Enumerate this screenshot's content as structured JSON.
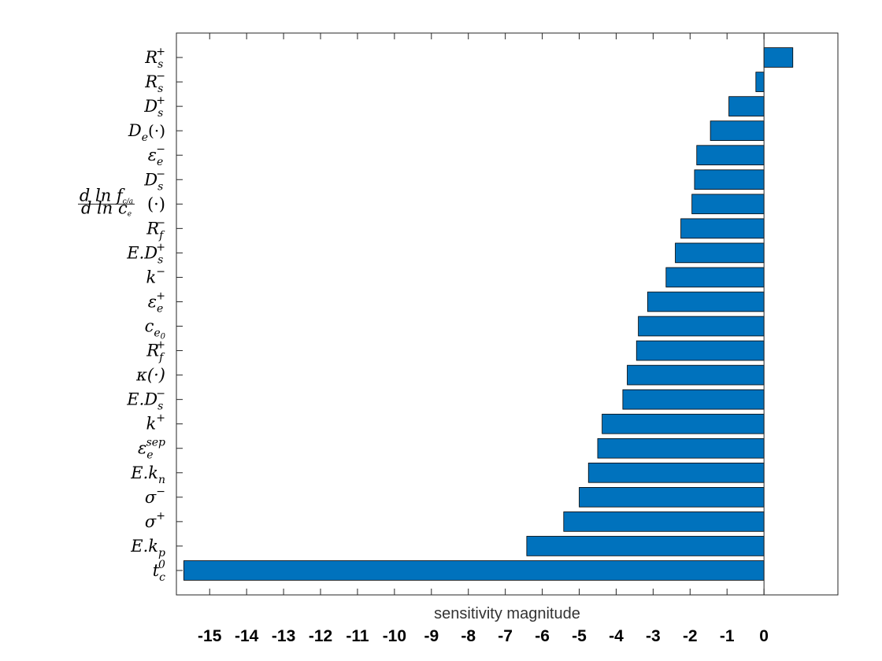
{
  "chart_data": {
    "type": "bar",
    "orientation": "horizontal",
    "title": "",
    "xlabel": "sensitivity magnitude",
    "ylabel": "",
    "xlim": [
      -15.9,
      2.0
    ],
    "x_ticks": [
      -15,
      -14,
      -13,
      -12,
      -11,
      -10,
      -9,
      -8,
      -7,
      -6,
      -5,
      -4,
      -3,
      -2,
      -1,
      0
    ],
    "grid": false,
    "bar_color": "#0072BD",
    "bar_edge_color": "#000000",
    "categories": [
      {
        "id": "Rs+",
        "parts": [
          [
            "R",
            ""
          ],
          [
            "s",
            "sub"
          ],
          [
            "+",
            "sup"
          ]
        ]
      },
      {
        "id": "Rs-",
        "parts": [
          [
            "R",
            ""
          ],
          [
            "s",
            "sub"
          ],
          [
            "−",
            "sup"
          ]
        ]
      },
      {
        "id": "Ds+",
        "parts": [
          [
            "D",
            ""
          ],
          [
            "s",
            "sub"
          ],
          [
            "+",
            "sup"
          ]
        ]
      },
      {
        "id": "De",
        "parts": [
          [
            "D",
            ""
          ],
          [
            "e",
            "sub"
          ],
          [
            "(·)",
            "plain"
          ]
        ]
      },
      {
        "id": "eps_e-",
        "parts": [
          [
            "ε",
            ""
          ],
          [
            "e",
            "sub"
          ],
          [
            "−",
            "sup"
          ]
        ]
      },
      {
        "id": "Ds-",
        "parts": [
          [
            "D",
            ""
          ],
          [
            "s",
            "sub"
          ],
          [
            "−",
            "sup"
          ]
        ]
      },
      {
        "id": "dlnf",
        "parts": [
          [
            "d ln f",
            "fracnum"
          ],
          [
            "c/a",
            "fracnumsub"
          ],
          [
            "d ln c",
            "fracden"
          ],
          [
            "e",
            "fracdensub"
          ],
          [
            "(·)",
            "plain"
          ]
        ]
      },
      {
        "id": "Rf-",
        "parts": [
          [
            "R",
            ""
          ],
          [
            "f",
            "sub"
          ],
          [
            "−",
            "sup"
          ]
        ]
      },
      {
        "id": "E.Ds+",
        "parts": [
          [
            "E.D",
            ""
          ],
          [
            "s",
            "sub"
          ],
          [
            "+",
            "sup"
          ]
        ]
      },
      {
        "id": "k-",
        "parts": [
          [
            "k",
            ""
          ],
          [
            "−",
            "sup"
          ]
        ]
      },
      {
        "id": "eps_e+",
        "parts": [
          [
            "ε",
            ""
          ],
          [
            "e",
            "sub"
          ],
          [
            "+",
            "sup"
          ]
        ]
      },
      {
        "id": "ce0",
        "parts": [
          [
            "c",
            ""
          ],
          [
            "e",
            "sub"
          ],
          [
            "0",
            "subsub"
          ]
        ]
      },
      {
        "id": "Rf+",
        "parts": [
          [
            "R",
            ""
          ],
          [
            "f",
            "sub"
          ],
          [
            "+",
            "sup"
          ]
        ]
      },
      {
        "id": "kappa",
        "parts": [
          [
            "κ(·)",
            ""
          ]
        ]
      },
      {
        "id": "E.Ds-",
        "parts": [
          [
            "E.D",
            ""
          ],
          [
            "s",
            "sub"
          ],
          [
            "−",
            "sup"
          ]
        ]
      },
      {
        "id": "k+",
        "parts": [
          [
            "k",
            ""
          ],
          [
            "+",
            "sup"
          ]
        ]
      },
      {
        "id": "eps_sep",
        "parts": [
          [
            "ε",
            ""
          ],
          [
            "e",
            "sub"
          ],
          [
            "sep",
            "sup"
          ]
        ]
      },
      {
        "id": "E.kn",
        "parts": [
          [
            "E.k",
            ""
          ],
          [
            "n",
            "sub"
          ]
        ]
      },
      {
        "id": "sigma-",
        "parts": [
          [
            "σ",
            ""
          ],
          [
            "−",
            "sup"
          ]
        ]
      },
      {
        "id": "sigma+",
        "parts": [
          [
            "σ",
            ""
          ],
          [
            "+",
            "sup"
          ]
        ]
      },
      {
        "id": "E.kp",
        "parts": [
          [
            "E.k",
            ""
          ],
          [
            "p",
            "sub"
          ]
        ]
      },
      {
        "id": "tc0",
        "parts": [
          [
            "t",
            ""
          ],
          [
            "c",
            "sub"
          ],
          [
            "0",
            "sup"
          ]
        ]
      }
    ],
    "values": [
      0.78,
      -0.22,
      -0.95,
      -1.45,
      -1.82,
      -1.88,
      -1.95,
      -2.25,
      -2.4,
      -2.65,
      -3.15,
      -3.4,
      -3.45,
      -3.7,
      -3.82,
      -4.38,
      -4.5,
      -4.75,
      -5.0,
      -5.42,
      -6.42,
      -15.7
    ]
  }
}
